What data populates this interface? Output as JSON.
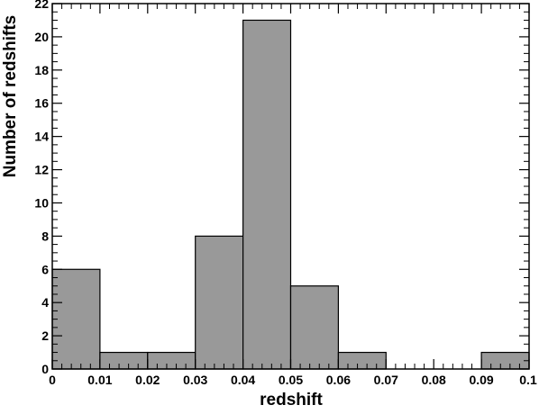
{
  "chart_data": {
    "type": "bar",
    "title": "",
    "xlabel": "redshift",
    "ylabel": "Number of redshifts",
    "bin_edges": [
      0,
      0.01,
      0.02,
      0.03,
      0.04,
      0.05,
      0.06,
      0.07,
      0.08,
      0.09,
      0.1
    ],
    "values": [
      6,
      1,
      1,
      8,
      21,
      5,
      1,
      0,
      0,
      1
    ],
    "xlim": [
      0,
      0.1
    ],
    "ylim": [
      0,
      22
    ],
    "x_ticks": [
      "0",
      "0.01",
      "0.02",
      "0.03",
      "0.04",
      "0.05",
      "0.06",
      "0.07",
      "0.08",
      "0.09",
      "0.1"
    ],
    "y_ticks": [
      "0",
      "2",
      "4",
      "6",
      "8",
      "10",
      "12",
      "14",
      "16",
      "18",
      "20",
      "22"
    ],
    "grid": false,
    "legend": "none",
    "bar_color": "#999999",
    "bar_edge_color": "#000000"
  }
}
